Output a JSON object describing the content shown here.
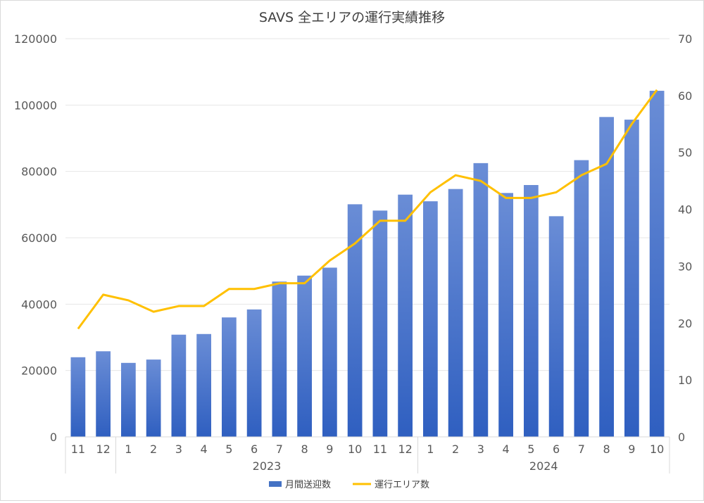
{
  "chart_data": {
    "type": "bar+line",
    "title": "SAVS 全エリアの運行実績推移",
    "categories": [
      "11",
      "12",
      "1",
      "2",
      "3",
      "4",
      "5",
      "6",
      "7",
      "8",
      "9",
      "10",
      "11",
      "12",
      "1",
      "2",
      "3",
      "4",
      "5",
      "6",
      "7",
      "8",
      "9",
      "10"
    ],
    "year_groups": [
      {
        "label": "",
        "start": 0,
        "end": 1
      },
      {
        "label": "2023",
        "start": 2,
        "end": 13
      },
      {
        "label": "2024",
        "start": 14,
        "end": 23
      }
    ],
    "series": [
      {
        "name": "月間送迎数",
        "type": "bar",
        "axis": "left",
        "color": "#4472c4",
        "values": [
          24000,
          25800,
          22300,
          23300,
          30800,
          31000,
          36000,
          38400,
          46800,
          48600,
          51000,
          70100,
          68200,
          73000,
          71000,
          74700,
          82500,
          73500,
          75900,
          66500,
          83400,
          96400,
          95600,
          104300
        ]
      },
      {
        "name": "運行エリア数",
        "type": "line",
        "axis": "right",
        "color": "#ffc000",
        "values": [
          19,
          25,
          24,
          22,
          23,
          23,
          26,
          26,
          27,
          27,
          31,
          34,
          38,
          38,
          43,
          46,
          45,
          42,
          42,
          43,
          46,
          48,
          55,
          61
        ]
      }
    ],
    "y_left": {
      "min": 0,
      "max": 120000,
      "ticks": [
        "0",
        "20000",
        "40000",
        "60000",
        "80000",
        "100000",
        "120000"
      ]
    },
    "y_right": {
      "min": 0,
      "max": 70,
      "ticks": [
        "0",
        "10",
        "20",
        "30",
        "40",
        "50",
        "60",
        "70"
      ]
    },
    "grid": true,
    "legend": "bottom"
  }
}
